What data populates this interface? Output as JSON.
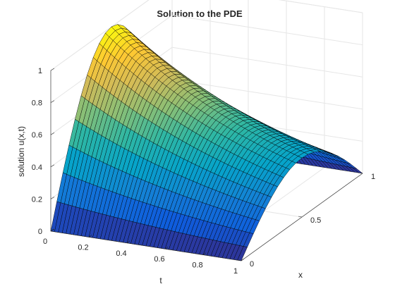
{
  "chart_data": {
    "type": "surface",
    "title": "Solution to the PDE",
    "xlabel": "t",
    "ylabel": "x",
    "zlabel": "solution u(x,t)",
    "t_range": [
      0,
      1
    ],
    "x_range": [
      0,
      1
    ],
    "z_range": [
      0,
      1
    ],
    "t_ticks": [
      "0",
      "0.2",
      "0.4",
      "0.6",
      "0.8",
      "1"
    ],
    "x_ticks": [
      "0",
      "0.5",
      "1"
    ],
    "z_ticks": [
      "0",
      "0.2",
      "0.4",
      "0.6",
      "0.8",
      "1"
    ],
    "grid": true,
    "colormap": "parula",
    "colormap_stops": [
      "#352a87",
      "#0f5cdd",
      "#1481d6",
      "#06a4ca",
      "#2eb7a4",
      "#87bf77",
      "#d1bb59",
      "#fec832",
      "#f9fb0e"
    ],
    "edge_color": "#000000",
    "x_mesh": [
      0,
      0.05,
      0.1,
      0.15,
      0.2,
      0.25,
      0.3,
      0.35,
      0.4,
      0.45,
      0.5,
      0.55,
      0.6,
      0.65,
      0.7,
      0.75,
      0.8,
      0.85,
      0.9,
      0.95,
      1.0
    ],
    "t_mesh": [
      0,
      0.02,
      0.04,
      0.06,
      0.08,
      0.1,
      0.12,
      0.14,
      0.16,
      0.18,
      0.2,
      0.22,
      0.24,
      0.26,
      0.28,
      0.3,
      0.32,
      0.34,
      0.36,
      0.38,
      0.4,
      0.42,
      0.44,
      0.46,
      0.48,
      0.5,
      0.52,
      0.54,
      0.56,
      0.58,
      0.6,
      0.62,
      0.64,
      0.66,
      0.68,
      0.7,
      0.72,
      0.74,
      0.76,
      0.78,
      0.8,
      0.82,
      0.84,
      0.86,
      0.88,
      0.9,
      0.92,
      0.94,
      0.96,
      0.98,
      1.0
    ],
    "surface_formula": "u(x,t) = exp(-t) * sin(pi * x)"
  }
}
